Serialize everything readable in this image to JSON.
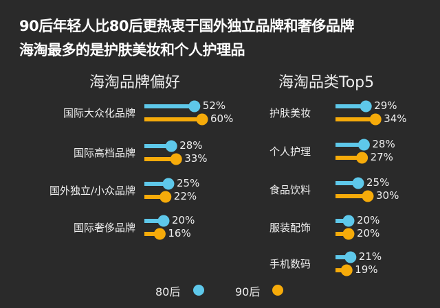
{
  "header": {
    "title_line1": "90后年轻人比80后更热衷于国外独立品牌和奢侈品牌",
    "title_line2": "海淘最多的是护肤美妆和个人护理品"
  },
  "colors": {
    "s80": "#5ec8ea",
    "s90": "#f6ab0a",
    "background": "#2a2a2a"
  },
  "chart_data": [
    {
      "type": "bar",
      "title": "海淘品牌偏好",
      "categories": [
        "国际大众化品牌",
        "国际高档品牌",
        "国外独立/小众品牌",
        "国际奢侈品牌"
      ],
      "series": [
        {
          "name": "80后",
          "values": [
            52,
            28,
            25,
            20
          ],
          "labels": [
            "52%",
            "28%",
            "25%",
            "20%"
          ]
        },
        {
          "name": "90后",
          "values": [
            60,
            33,
            22,
            16
          ],
          "labels": [
            "60%",
            "33%",
            "22%",
            "16%"
          ]
        }
      ],
      "unit": "%"
    },
    {
      "type": "bar",
      "title": "海淘品类Top5",
      "categories": [
        "护肤美妆",
        "个人护理",
        "食品饮料",
        "服装配饰",
        "手机数码"
      ],
      "series": [
        {
          "name": "80后",
          "values": [
            29,
            28,
            25,
            20,
            21
          ],
          "labels": [
            "29%",
            "28%",
            "25%",
            "20%",
            "21%"
          ]
        },
        {
          "name": "90后",
          "values": [
            34,
            27,
            30,
            20,
            19
          ],
          "labels": [
            "34%",
            "27%",
            "30%",
            "20%",
            "19%"
          ]
        }
      ],
      "unit": "%"
    }
  ],
  "legend": {
    "s80": "80后",
    "s90": "90后"
  }
}
